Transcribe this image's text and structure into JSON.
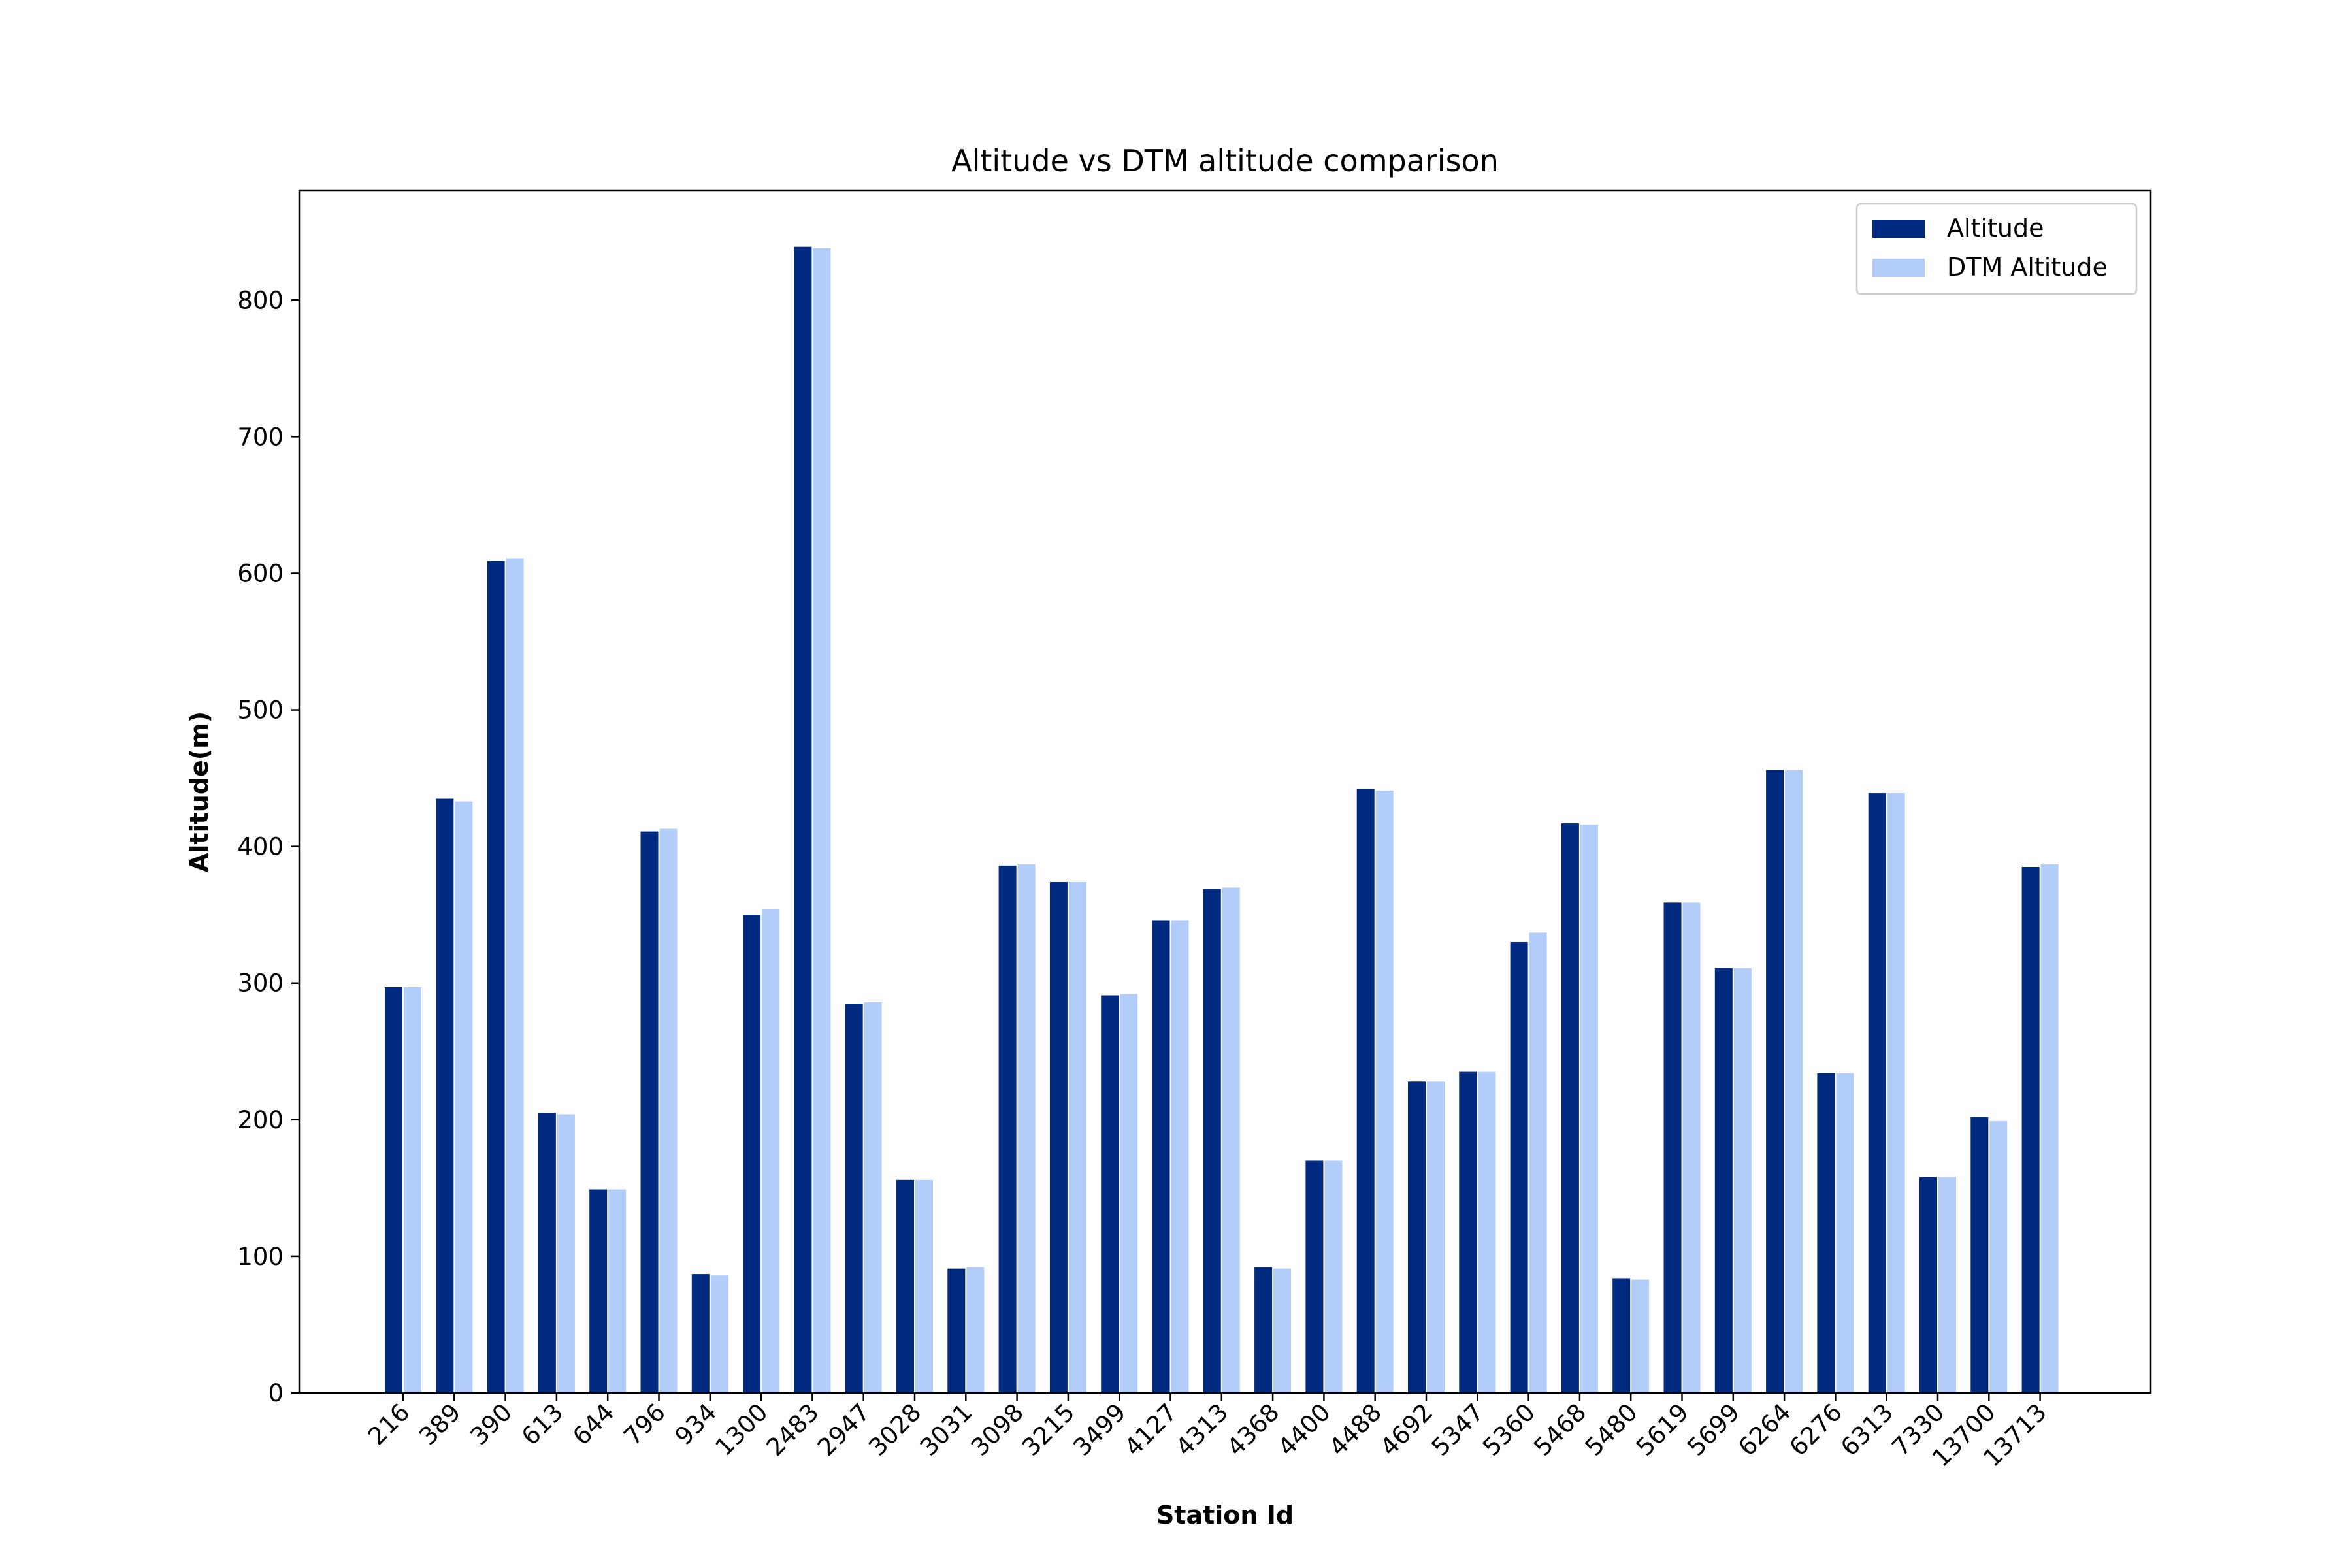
{
  "chart_data": {
    "type": "bar",
    "title": "Altitude vs DTM altitude comparison",
    "xlabel": "Station Id",
    "ylabel": "Altitude(m)",
    "ylim": [
      0,
      880
    ],
    "yticks": [
      0,
      100,
      200,
      300,
      400,
      500,
      600,
      700,
      800
    ],
    "grid": false,
    "legend_position": "top-right",
    "categories": [
      "216",
      "389",
      "390",
      "613",
      "644",
      "796",
      "934",
      "1300",
      "2483",
      "2947",
      "3028",
      "3031",
      "3098",
      "3215",
      "3499",
      "4127",
      "4313",
      "4368",
      "4400",
      "4488",
      "4692",
      "5347",
      "5360",
      "5468",
      "5480",
      "5619",
      "5699",
      "6264",
      "6276",
      "6313",
      "7330",
      "13700",
      "13713"
    ],
    "series": [
      {
        "name": "Altitude",
        "color": "#002a7f",
        "values": [
          297,
          435,
          609,
          205,
          149,
          411,
          87,
          350,
          839,
          285,
          156,
          91,
          386,
          374,
          291,
          346,
          369,
          92,
          170,
          442,
          228,
          235,
          330,
          417,
          84,
          359,
          311,
          456,
          234,
          439,
          158,
          202,
          385
        ]
      },
      {
        "name": "DTM Altitude",
        "color": "#b3cdfa",
        "values": [
          297,
          433,
          611,
          204,
          149,
          413,
          86,
          354,
          838,
          286,
          156,
          92,
          387,
          374,
          292,
          346,
          370,
          91,
          170,
          441,
          228,
          235,
          337,
          416,
          83,
          359,
          311,
          456,
          234,
          439,
          158,
          199,
          387
        ]
      }
    ]
  }
}
